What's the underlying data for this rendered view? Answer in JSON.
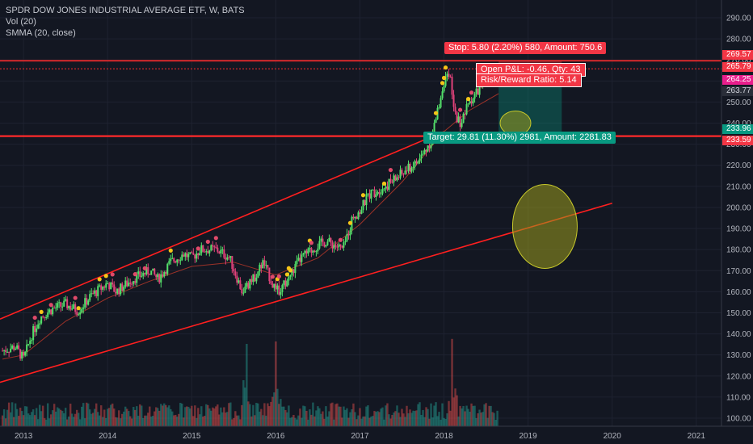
{
  "header": {
    "symbol_line": "SPDR DOW JONES INDUSTRIAL AVERAGE ETF, W, BATS",
    "indicator_1": "Vol (20)",
    "indicator_2": "SMMA (20, close)"
  },
  "price_tags": {
    "stop_level": "269.57",
    "entry_level": "265.79",
    "last_price": "264.25",
    "crosshair": "263.77",
    "target_level": "233.96",
    "support_level": "233.59"
  },
  "position_tool": {
    "stop_label": "Stop: 5.80 (2.20%) 580, Amount: 750.6",
    "open_pnl_label": "Open P&L: -0.46, Qty: 43",
    "risk_reward_label": "Risk/Reward Ratio: 5.14",
    "target_label": "Target: 29.81 (11.30%) 2981, Amount: 2281.83"
  },
  "colors": {
    "background": "#131722",
    "up_candle": "#53e06a",
    "down_candle": "#e0427a",
    "channel_line": "#ff1f1f",
    "stop_red": "#f23645",
    "target_green": "#089981",
    "last_price_magenta": "#e91e8c",
    "highlight_ellipse": "#9a9b1e"
  },
  "chart_data": {
    "type": "line",
    "title": "SPDR DOW JONES INDUSTRIAL AVERAGE ETF, W, BATS",
    "xlabel": "",
    "ylabel": "",
    "x_ticks": [
      "2013",
      "2014",
      "2015",
      "2016",
      "2017",
      "2018",
      "2019",
      "2020",
      "2021"
    ],
    "y_ticks": [
      "100.00",
      "110.00",
      "120.00",
      "130.00",
      "140.00",
      "150.00",
      "160.00",
      "170.00",
      "180.00",
      "190.00",
      "200.00",
      "210.00",
      "220.00",
      "230.00",
      "240.00",
      "250.00",
      "260.00",
      "270.00",
      "280.00",
      "290.00"
    ],
    "ylim": [
      95,
      297
    ],
    "xlim": [
      2012.72,
      2021.3
    ],
    "series": [
      {
        "name": "Price",
        "x": [
          2012.75,
          2012.9,
          2013.0,
          2013.1,
          2013.2,
          2013.35,
          2013.5,
          2013.65,
          2013.8,
          2014.0,
          2014.1,
          2014.3,
          2014.5,
          2014.6,
          2014.75,
          2014.9,
          2015.0,
          2015.1,
          2015.3,
          2015.45,
          2015.6,
          2015.7,
          2015.85,
          2016.0,
          2016.08,
          2016.3,
          2016.5,
          2016.6,
          2016.8,
          2016.92,
          2017.0,
          2017.1,
          2017.3,
          2017.5,
          2017.7,
          2017.85,
          2018.0,
          2018.07,
          2018.12,
          2018.2,
          2018.3,
          2018.45,
          2018.55,
          2018.65
        ],
        "y": [
          132,
          134,
          128,
          140,
          148,
          152,
          154,
          151,
          158,
          164,
          160,
          166,
          170,
          166,
          174,
          178,
          176,
          180,
          180,
          176,
          160,
          164,
          174,
          160,
          162,
          176,
          182,
          184,
          180,
          196,
          198,
          206,
          210,
          216,
          222,
          232,
          260,
          262,
          245,
          240,
          250,
          258,
          262,
          266
        ]
      },
      {
        "name": "SMMA (20, close)",
        "x": [
          2012.75,
          2013.0,
          2013.5,
          2014.0,
          2014.5,
          2015.0,
          2015.5,
          2016.0,
          2016.5,
          2017.0,
          2017.5,
          2018.0,
          2018.3,
          2018.65
        ],
        "y": [
          128,
          130,
          146,
          157,
          165,
          172,
          174,
          168,
          176,
          192,
          212,
          236,
          246,
          254
        ]
      },
      {
        "name": "Channel upper",
        "x": [
          2012.72,
          2018.0
        ],
        "y": [
          147,
          236
        ]
      },
      {
        "name": "Channel lower",
        "x": [
          2012.72,
          2020.0
        ],
        "y": [
          117,
          202
        ]
      }
    ],
    "horizontal_lines": [
      269.57,
      265.79,
      233.96,
      233.59
    ],
    "volume": {
      "ylim_relative": "bottom pane",
      "peak_dates": [
        2015.65,
        2016.0,
        2018.1
      ]
    },
    "grid": true,
    "legend": "top-left"
  }
}
